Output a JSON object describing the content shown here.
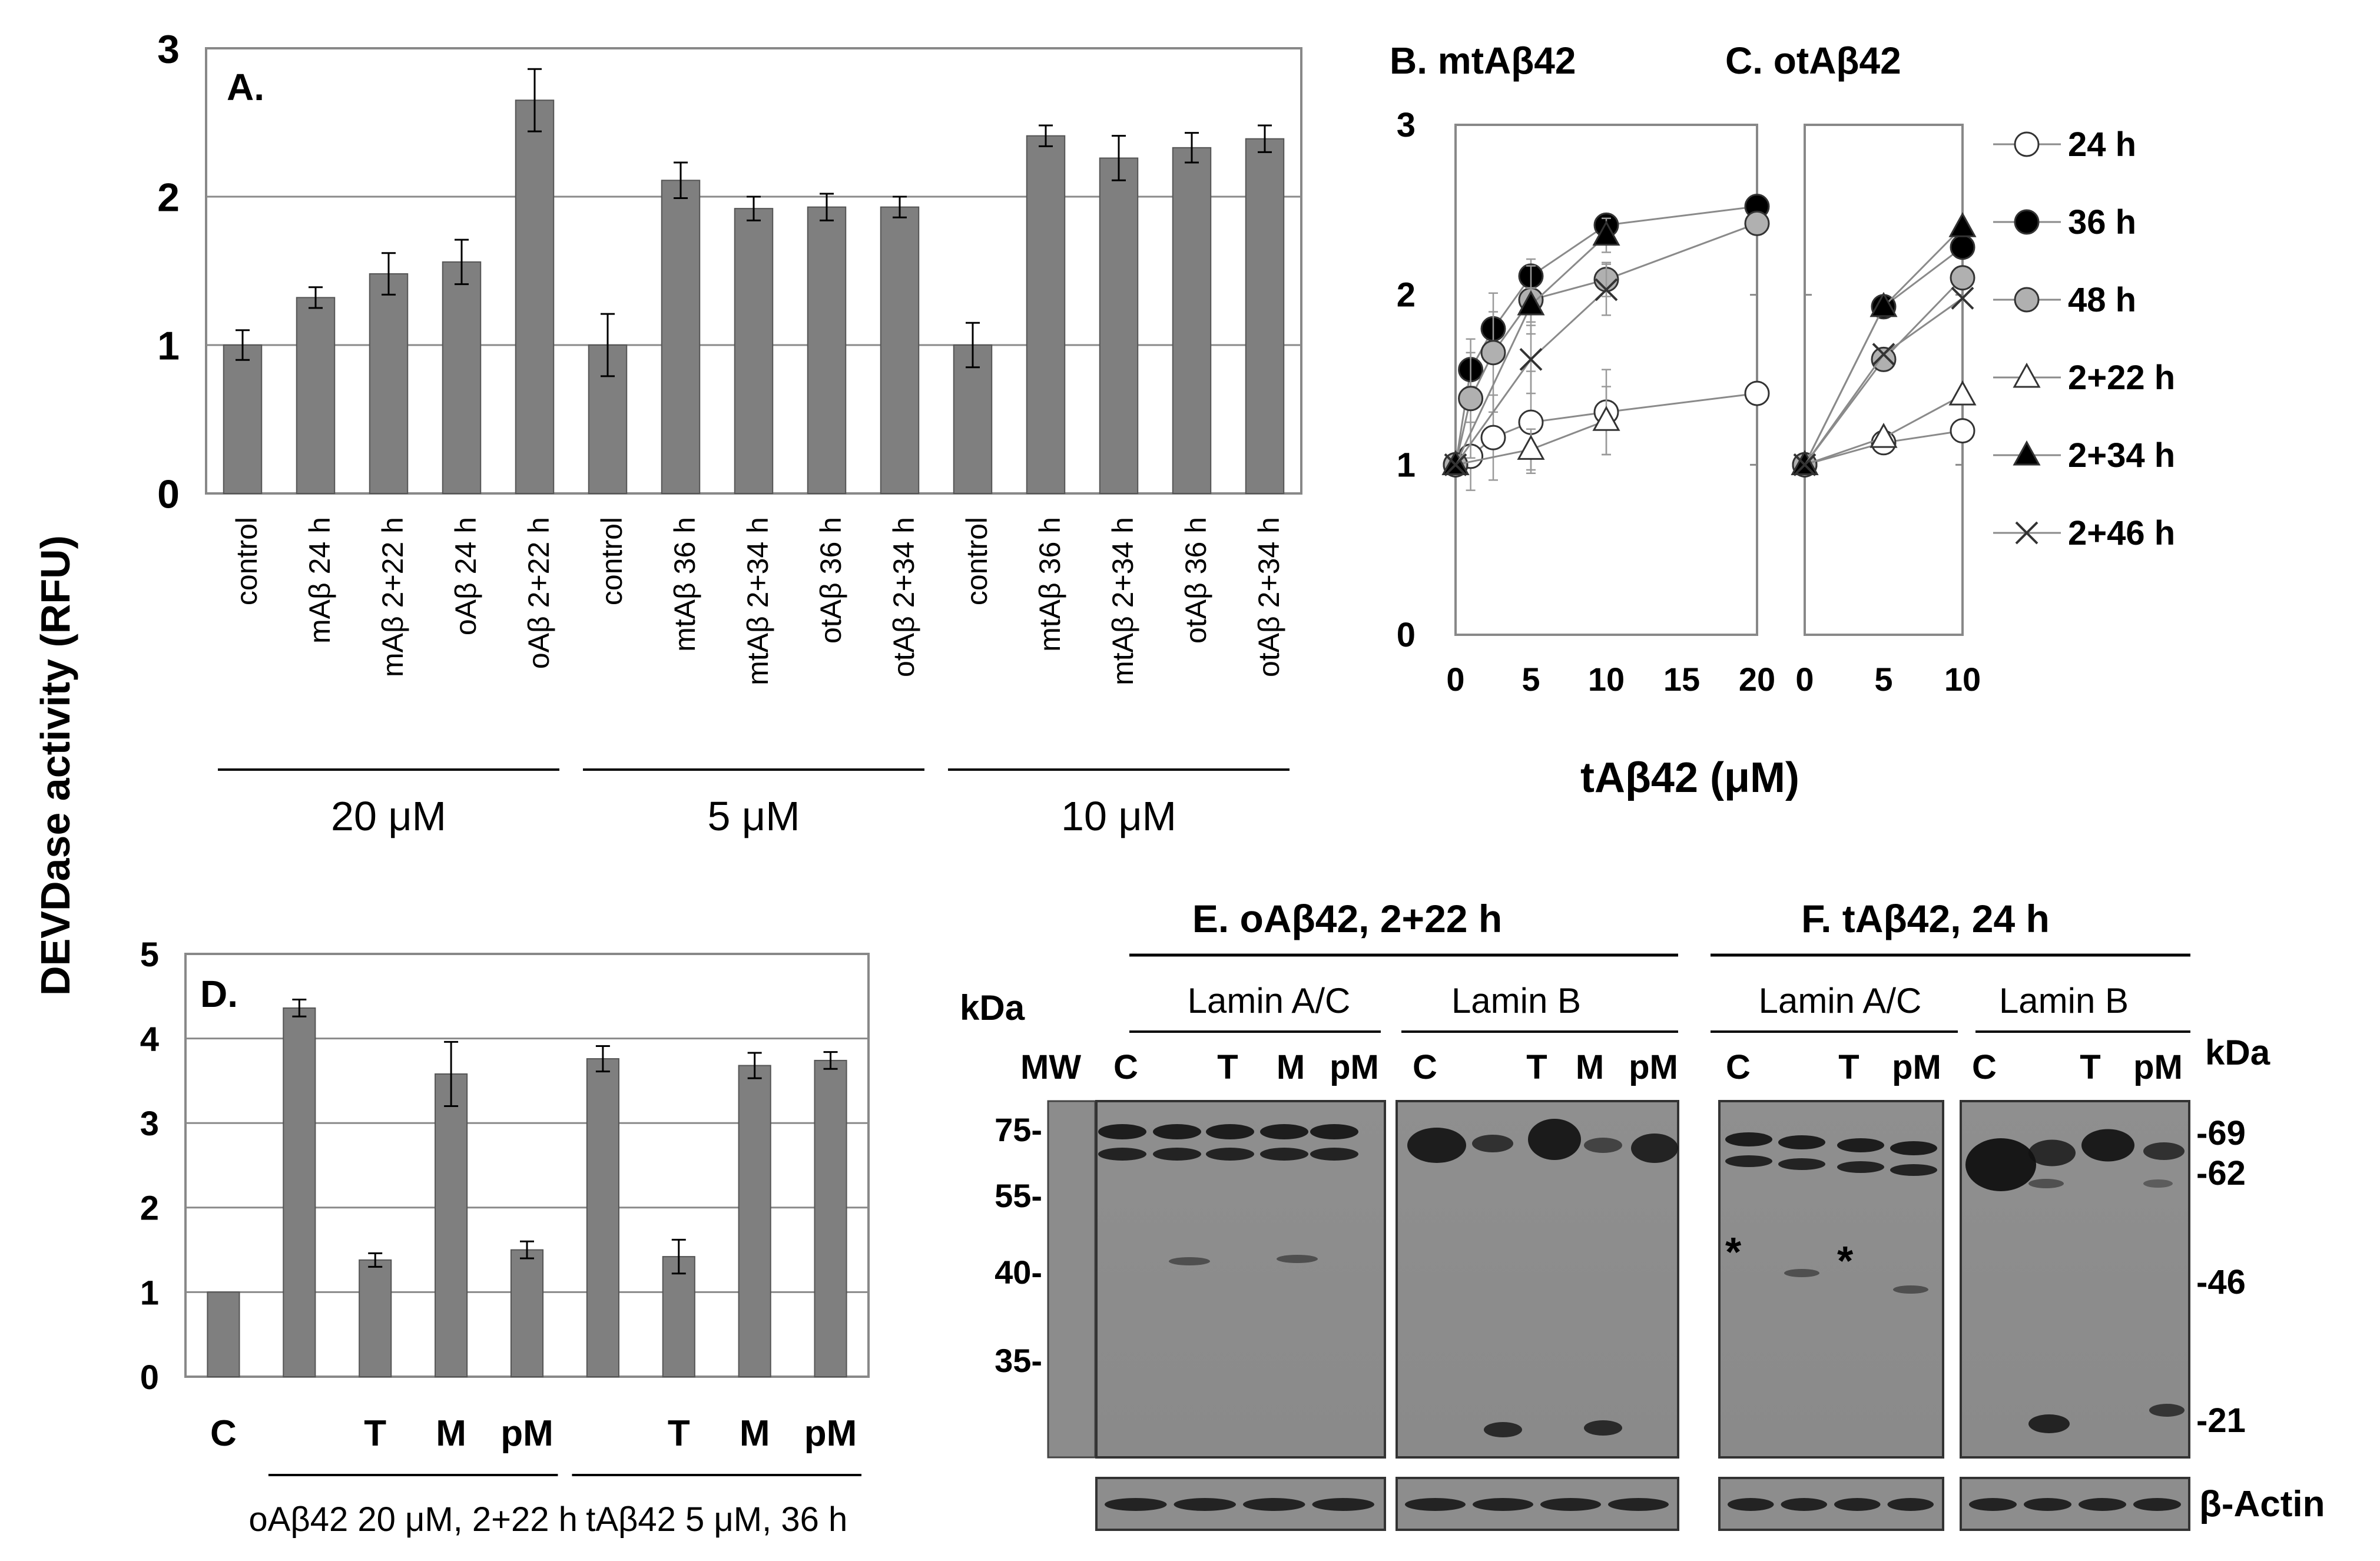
{
  "yaxis_title": "DEVDase activity (RFU)",
  "chart_data": [
    {
      "id": "A",
      "type": "bar",
      "panel_label": "A.",
      "ylim": [
        0,
        3
      ],
      "yticks": [
        0,
        1,
        2,
        3
      ],
      "grid": true,
      "categories": [
        "control",
        "mAβ 24 h",
        "mAβ 2+22 h",
        "oAβ 24 h",
        "oAβ 2+22 h",
        "control",
        "mtAβ 36 h",
        "mtAβ 2+34 h",
        "otAβ 36 h",
        "otAβ 2+34 h",
        "control",
        "mtAβ 36 h",
        "mtAβ 2+34 h",
        "otAβ 36 h",
        "otAβ 2+34 h"
      ],
      "values": [
        1.0,
        1.32,
        1.48,
        1.56,
        2.65,
        1.0,
        2.11,
        1.92,
        1.93,
        1.93,
        1.0,
        2.41,
        2.26,
        2.33,
        2.39
      ],
      "errors": [
        0.1,
        0.07,
        0.14,
        0.15,
        0.21,
        0.21,
        0.12,
        0.08,
        0.09,
        0.07,
        0.15,
        0.07,
        0.15,
        0.1,
        0.09
      ],
      "groups": [
        {
          "label": "20 μM",
          "from": 0,
          "to": 4
        },
        {
          "label": "5 μM",
          "from": 5,
          "to": 9
        },
        {
          "label": "10 μM",
          "from": 10,
          "to": 14
        }
      ]
    },
    {
      "id": "B",
      "type": "line",
      "title": "B. mtAβ42",
      "xlim": [
        0,
        20
      ],
      "xticks": [
        0,
        5,
        10,
        15,
        20
      ],
      "ylim": [
        0,
        3
      ],
      "yticks": [
        0,
        1,
        2,
        3
      ],
      "series": [
        {
          "name": "24 h",
          "x": [
            0,
            1,
            2.5,
            5,
            10,
            20
          ],
          "y": [
            1.0,
            1.05,
            1.16,
            1.25,
            1.31,
            1.42
          ],
          "err": [
            0.05,
            0.2,
            0.25,
            0.3,
            0.25,
            0
          ],
          "marker": "circle-open"
        },
        {
          "name": "36 h",
          "x": [
            0,
            1,
            2.5,
            5,
            10,
            20
          ],
          "y": [
            1.0,
            1.56,
            1.8,
            2.11,
            2.41,
            2.52
          ],
          "err": [
            0,
            0.1,
            0.1,
            0.1,
            0.05,
            0
          ],
          "marker": "circle-filled"
        },
        {
          "name": "48 h",
          "x": [
            0,
            1,
            2.5,
            5,
            10,
            20
          ],
          "y": [
            1.0,
            1.39,
            1.66,
            1.97,
            2.09,
            2.42
          ],
          "err": [
            0,
            0.35,
            0.35,
            0.2,
            0.1,
            0
          ],
          "marker": "circle-gray"
        },
        {
          "name": "2+22 h",
          "x": [
            0,
            5,
            10
          ],
          "y": [
            1.0,
            1.09,
            1.26
          ],
          "err": [
            0,
            0.12,
            0.2
          ],
          "marker": "triangle-open"
        },
        {
          "name": "2+34 h",
          "x": [
            0,
            5,
            10
          ],
          "y": [
            1.0,
            1.94,
            2.35
          ],
          "err": [
            0,
            0.1,
            0.1
          ],
          "marker": "triangle-filled"
        },
        {
          "name": "2+46 h",
          "x": [
            0,
            5,
            10
          ],
          "y": [
            1.0,
            1.62,
            2.03
          ],
          "err": [
            0,
            0.2,
            0.15
          ],
          "marker": "x"
        }
      ]
    },
    {
      "id": "C",
      "type": "line",
      "title": "C. otAβ42",
      "xlim": [
        0,
        10
      ],
      "xticks": [
        0,
        5,
        10
      ],
      "ylim": [
        0,
        3
      ],
      "series": [
        {
          "name": "24 h",
          "x": [
            0,
            5,
            10
          ],
          "y": [
            1.0,
            1.13,
            1.2
          ]
        },
        {
          "name": "36 h",
          "x": [
            0,
            5,
            10
          ],
          "y": [
            1.0,
            1.93,
            2.28
          ]
        },
        {
          "name": "48 h",
          "x": [
            0,
            5,
            10
          ],
          "y": [
            1.0,
            1.62,
            2.1
          ]
        },
        {
          "name": "2+22 h",
          "x": [
            0,
            5,
            10
          ],
          "y": [
            1.0,
            1.16,
            1.41
          ]
        },
        {
          "name": "2+34 h",
          "x": [
            0,
            5,
            10
          ],
          "y": [
            1.0,
            1.93,
            2.4
          ]
        },
        {
          "name": "2+46 h",
          "x": [
            0,
            5,
            10
          ],
          "y": [
            1.0,
            1.65,
            1.98
          ]
        }
      ]
    },
    {
      "id": "D",
      "type": "bar",
      "panel_label": "D.",
      "ylim": [
        0,
        5
      ],
      "yticks": [
        0,
        1,
        2,
        3,
        4,
        5
      ],
      "grid": true,
      "categories": [
        "C",
        "",
        "T",
        "M",
        "pM",
        "",
        "T",
        "M",
        "pM"
      ],
      "values": [
        1.0,
        4.36,
        1.38,
        3.58,
        1.5,
        3.76,
        1.42,
        3.68,
        3.74
      ],
      "errors": [
        0.0,
        0.1,
        0.08,
        0.38,
        0.1,
        0.15,
        0.2,
        0.15,
        0.1
      ],
      "groups": [
        {
          "label": "oAβ42 20 μM, 2+22 h",
          "from": 1,
          "to": 4
        },
        {
          "label": "tAβ42 5 μM, 36 h",
          "from": 5,
          "to": 8
        }
      ]
    }
  ],
  "shared_xlabel": "tAβ42 (μM)",
  "legend": [
    "24 h",
    "36 h",
    "48 h",
    "2+22 h",
    "2+34 h",
    "2+46 h"
  ],
  "blot": {
    "kda_label": "kDa",
    "panel_e_title": "E. oAβ42, 2+22 h",
    "panel_f_title": "F. tAβ42, 24 h",
    "lamin_ac": "Lamin A/C",
    "lamin_b": "Lamin B",
    "mw_label": "MW",
    "lanes_e1": [
      "C",
      "T",
      "M",
      "pM"
    ],
    "lanes_e2": [
      "C",
      "T",
      "M",
      "pM"
    ],
    "lanes_f1": [
      "C",
      "T",
      "pM"
    ],
    "lanes_f2": [
      "C",
      "T",
      "pM"
    ],
    "mw_markers": [
      "75-",
      "55-",
      "40-",
      "35-"
    ],
    "right_markers": [
      "-69",
      "-62",
      "-46",
      "-21"
    ],
    "asterisk": "*",
    "actin_label": "β-Actin"
  }
}
